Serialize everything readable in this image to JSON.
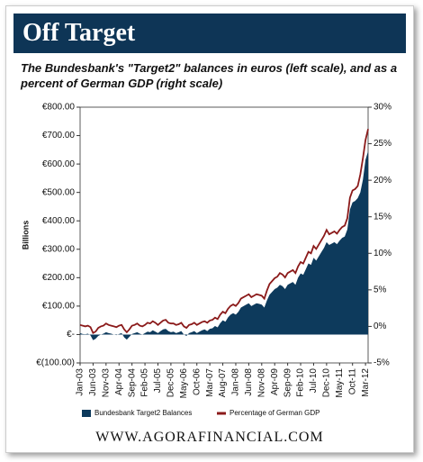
{
  "title": "Off Target",
  "footer": "WWW.AGORAFINANCIAL.COM",
  "chart_data": {
    "type": "area_line",
    "subtitle": "The Bundesbank's \"Target2\" balances in euros (left scale), and as a percent of German GDP (right scale)",
    "ylabel": "Billions",
    "categories": [
      "Jan-03",
      null,
      null,
      null,
      null,
      "Jun-03",
      null,
      null,
      null,
      null,
      "Nov-03",
      null,
      null,
      null,
      null,
      "Apr-04",
      null,
      null,
      null,
      null,
      "Sep-04",
      null,
      null,
      null,
      null,
      "Feb-05",
      null,
      null,
      null,
      null,
      "Jul-05",
      null,
      null,
      null,
      null,
      "Dec-05",
      null,
      null,
      null,
      null,
      "May-06",
      null,
      null,
      null,
      null,
      "Oct-06",
      null,
      null,
      null,
      null,
      "Mar-07",
      null,
      null,
      null,
      null,
      "Aug-07",
      null,
      null,
      null,
      null,
      "Jan-08",
      null,
      null,
      null,
      null,
      "Jun-08",
      null,
      null,
      null,
      null,
      "Nov-08",
      null,
      null,
      null,
      null,
      "Apr-09",
      null,
      null,
      null,
      null,
      "Sep-09",
      null,
      null,
      null,
      null,
      "Feb-10",
      null,
      null,
      null,
      null,
      "Jul-10",
      null,
      null,
      null,
      null,
      "Dec-10",
      null,
      null,
      null,
      null,
      "May-11",
      null,
      null,
      null,
      null,
      "Oct-11",
      null,
      null,
      null,
      null,
      "Mar-12",
      null
    ],
    "series": [
      {
        "name": "Bundesbank Target2 Balances",
        "color": "#0d3a5c",
        "values": [
          5,
          2,
          1,
          3,
          -3,
          -20,
          -15,
          -5,
          0,
          3,
          8,
          5,
          3,
          0,
          -2,
          2,
          5,
          -10,
          -18,
          -8,
          2,
          5,
          8,
          3,
          0,
          5,
          10,
          8,
          15,
          10,
          5,
          12,
          18,
          20,
          12,
          8,
          10,
          5,
          8,
          12,
          0,
          -5,
          5,
          8,
          12,
          5,
          10,
          15,
          18,
          12,
          20,
          22,
          30,
          25,
          40,
          50,
          45,
          60,
          70,
          75,
          70,
          80,
          95,
          100,
          105,
          110,
          100,
          105,
          110,
          108,
          105,
          95,
          120,
          140,
          150,
          160,
          165,
          175,
          170,
          160,
          175,
          180,
          185,
          175,
          200,
          215,
          210,
          230,
          250,
          245,
          270,
          260,
          275,
          290,
          305,
          325,
          315,
          320,
          325,
          318,
          330,
          340,
          345,
          370,
          440,
          465,
          470,
          480,
          500,
          545,
          615,
          645
        ]
      },
      {
        "name": "Percentage of German GDP",
        "color": "#8b1a1a",
        "axis": "y2",
        "values": [
          0.2,
          0.1,
          0,
          0.1,
          -0.1,
          -0.9,
          -0.7,
          -0.2,
          0,
          0.1,
          0.4,
          0.2,
          0.1,
          0,
          -0.1,
          0.1,
          0.2,
          -0.4,
          -0.8,
          -0.4,
          0.1,
          0.2,
          0.4,
          0.1,
          0,
          0.2,
          0.5,
          0.4,
          0.7,
          0.5,
          0.2,
          0.5,
          0.8,
          0.9,
          0.5,
          0.4,
          0.4,
          0.2,
          0.3,
          0.5,
          0,
          -0.2,
          0.2,
          0.3,
          0.5,
          0.2,
          0.4,
          0.6,
          0.7,
          0.5,
          0.8,
          0.9,
          1.2,
          1.0,
          1.6,
          2.0,
          1.8,
          2.4,
          2.8,
          3.0,
          2.8,
          3.2,
          3.8,
          4.0,
          4.2,
          4.4,
          4.0,
          4.2,
          4.4,
          4.3,
          4.2,
          3.8,
          4.9,
          5.8,
          6.2,
          6.6,
          6.8,
          7.3,
          7.1,
          6.7,
          7.3,
          7.5,
          7.7,
          7.3,
          8.2,
          8.8,
          8.6,
          9.4,
          10.2,
          10.0,
          11.0,
          10.6,
          11.2,
          11.8,
          12.4,
          13.2,
          12.6,
          12.8,
          13.0,
          12.7,
          13.2,
          13.6,
          13.8,
          14.8,
          17.6,
          18.6,
          18.8,
          19.2,
          20.8,
          23.0,
          25.5,
          27.0
        ]
      }
    ],
    "ylim": [
      -100,
      800
    ],
    "yticks": [
      {
        "value": -100,
        "label": "€(100.00)"
      },
      {
        "value": 0,
        "label": "€-"
      },
      {
        "value": 100,
        "label": "€100.00"
      },
      {
        "value": 200,
        "label": "€200.00"
      },
      {
        "value": 300,
        "label": "€300.00"
      },
      {
        "value": 400,
        "label": "€400.00"
      },
      {
        "value": 500,
        "label": "€500.00"
      },
      {
        "value": 600,
        "label": "€600.00"
      },
      {
        "value": 700,
        "label": "€700.00"
      },
      {
        "value": 800,
        "label": "€800.00"
      }
    ],
    "y2lim": [
      -5,
      30
    ],
    "y2ticks": [
      {
        "value": -5,
        "label": "-5%"
      },
      {
        "value": 0,
        "label": "0%"
      },
      {
        "value": 5,
        "label": "5%"
      },
      {
        "value": 10,
        "label": "10%"
      },
      {
        "value": 15,
        "label": "15%"
      },
      {
        "value": 20,
        "label": "20%"
      },
      {
        "value": 25,
        "label": "25%"
      },
      {
        "value": 30,
        "label": "30%"
      }
    ]
  }
}
